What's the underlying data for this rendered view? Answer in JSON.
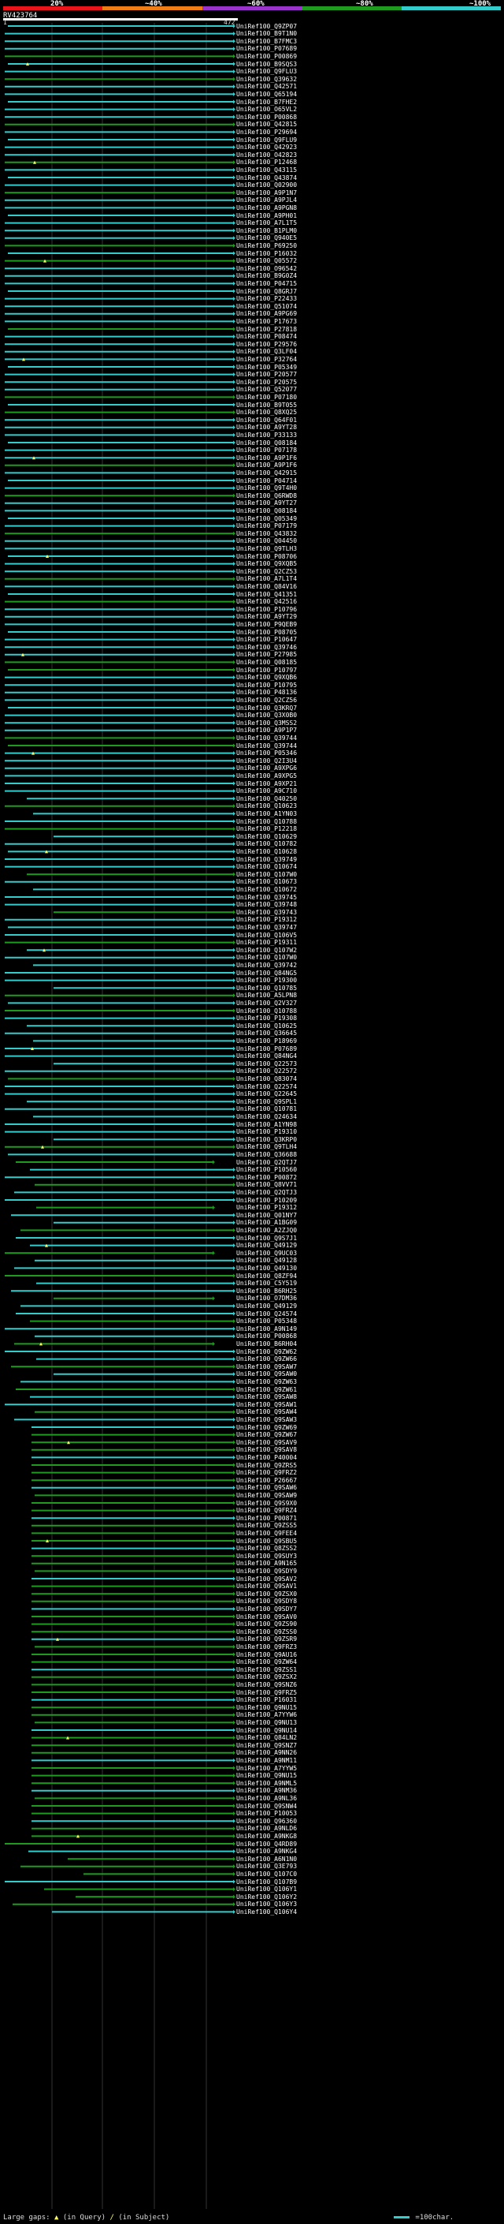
{
  "scale": {
    "labels": [
      "20%",
      "~40%",
      "~60%",
      "~80%",
      "~100%"
    ],
    "colors": [
      "#e8141a",
      "#ee7d16",
      "#9933cc",
      "#1e9a1e",
      "#33cccc"
    ]
  },
  "query": {
    "id": "RV423764",
    "start": "1",
    "end": "472"
  },
  "legend": {
    "gaps_text": "Large gaps:",
    "query_text": "(in Query)",
    "subject_text": "(in Subject)",
    "scale_text": "=100char."
  },
  "hit_ids": [
    "UniRef100_Q9ZP07",
    "UniRef100_B9T1N0",
    "UniRef100_B7FMC3",
    "UniRef100_P07689",
    "UniRef100_P00869",
    "UniRef100_B9SQS3",
    "UniRef100_Q9FLU3",
    "UniRef100_Q39632",
    "UniRef100_Q42571",
    "UniRef100_Q65194",
    "UniRef100_B7FHE2",
    "UniRef100_O65VL2",
    "UniRef100_P00868",
    "UniRef100_Q42815",
    "UniRef100_P29694",
    "UniRef100_Q9FLU9",
    "UniRef100_Q42923",
    "UniRef100_O42823",
    "UniRef100_P12468",
    "UniRef100_Q43115",
    "UniRef100_Q43874",
    "UniRef100_Q02900",
    "UniRef100_A9P1N7",
    "UniRef100_A9PJL4",
    "UniRef100_A9PGN8",
    "UniRef100_A9PH01",
    "UniRef100_A7L1T5",
    "UniRef100_B1PLM0",
    "UniRef100_Q940E5",
    "UniRef100_P69250",
    "UniRef100_P16032",
    "UniRef100_Q05572",
    "UniRef100_O96542",
    "UniRef100_B9G0Z4",
    "UniRef100_P04715",
    "UniRef100_Q8GRJ7",
    "UniRef100_P22433",
    "UniRef100_Q51074",
    "UniRef100_A9PG69",
    "UniRef100_P17673",
    "UniRef100_P27818",
    "UniRef100_P08474",
    "UniRef100_P29576",
    "UniRef100_Q3LF04",
    "UniRef100_P32764",
    "UniRef100_P05349",
    "UniRef100_P20577",
    "UniRef100_P20575",
    "UniRef100_Q52077",
    "UniRef100_P07180",
    "UniRef100_B9T055",
    "UniRef100_Q8XQ25",
    "UniRef100_Q64F01",
    "UniRef100_A9YT28",
    "UniRef100_P33133",
    "UniRef100_Q08184",
    "UniRef100_P07178",
    "UniRef100_A9P1F6",
    "UniRef100_A9P1F6",
    "UniRef100_Q42915",
    "UniRef100_P04714",
    "UniRef100_Q9T4H0",
    "UniRef100_Q6RWD8",
    "UniRef100_A9YT27",
    "UniRef100_Q08184",
    "UniRef100_Q05349",
    "UniRef100_P07179",
    "UniRef100_Q43832",
    "UniRef100_Q04450",
    "UniRef100_Q9TLH3",
    "UniRef100_P08706",
    "UniRef100_Q9XQB5",
    "UniRef100_Q2CZ53",
    "UniRef100_A7L1T4",
    "UniRef100_Q84V16",
    "UniRef100_Q41351",
    "UniRef100_Q42516",
    "UniRef100_P10796",
    "UniRef100_A9YT29",
    "UniRef100_P9QEB9",
    "UniRef100_P08705",
    "UniRef100_P10647",
    "UniRef100_Q39746",
    "UniRef100_P27985",
    "UniRef100_Q08185",
    "UniRef100_P10797",
    "UniRef100_Q9XQB6",
    "UniRef100_P10795",
    "UniRef100_P48136",
    "UniRef100_Q2CZ56",
    "UniRef100_Q3KRQ7",
    "UniRef100_Q3X0B0",
    "UniRef100_Q3MSS2",
    "UniRef100_A9P1P7",
    "UniRef100_Q39744",
    "UniRef100_Q39744",
    "UniRef100_P05346",
    "UniRef100_Q2I3U4",
    "UniRef100_A9XPG6",
    "UniRef100_A9XPG5",
    "UniRef100_A9XP21",
    "UniRef100_A9C710",
    "UniRef100_Q40250",
    "UniRef100_Q10623",
    "UniRef100_A1YN03",
    "UniRef100_Q10788",
    "UniRef100_P12218",
    "UniRef100_Q10629",
    "UniRef100_Q10782",
    "UniRef100_Q10628",
    "UniRef100_Q39749",
    "UniRef100_Q10674",
    "UniRef100_Q107W0",
    "UniRef100_Q10673",
    "UniRef100_Q10672",
    "UniRef100_Q39745",
    "UniRef100_Q39748",
    "UniRef100_Q39743",
    "UniRef100_P19312",
    "UniRef100_Q39747",
    "UniRef100_Q106V5",
    "UniRef100_P19311",
    "UniRef100_Q107W2",
    "UniRef100_Q107W0",
    "UniRef100_Q39742",
    "UniRef100_Q84NG5",
    "UniRef100_P19300",
    "UniRef100_Q10785",
    "UniRef100_A5LPN8",
    "UniRef100_Q2V327",
    "UniRef100_Q10788",
    "UniRef100_P19308",
    "UniRef100_Q10625",
    "UniRef100_Q36645",
    "UniRef100_P18969",
    "UniRef100_P07689",
    "UniRef100_Q84NG4",
    "UniRef100_Q22573",
    "UniRef100_Q22572",
    "UniRef100_Q83074",
    "UniRef100_Q22574",
    "UniRef100_Q22645",
    "UniRef100_Q9SPL1",
    "UniRef100_Q10781",
    "UniRef100_Q24634",
    "UniRef100_A1YN98",
    "UniRef100_P19310",
    "UniRef100_Q3KRP0",
    "UniRef100_Q9TLH4",
    "UniRef100_Q36688",
    "UniRef100_Q2QTJ7",
    "UniRef100_P10560",
    "UniRef100_P00872",
    "UniRef100_Q8VV71",
    "UniRef100_Q2QTJ3",
    "UniRef100_P10209",
    "UniRef100_P19312",
    "UniRef100_Q01NY7",
    "UniRef100_A1BG09",
    "UniRef100_A2ZJQ0",
    "UniRef100_Q9S7J1",
    "UniRef100_Q49129",
    "UniRef100_Q9UC03",
    "UniRef100_Q49128",
    "UniRef100_Q49130",
    "UniRef100_Q8ZF94",
    "UniRef100_C5Y519",
    "UniRef100_B6RH25",
    "UniRef100_O7DM36",
    "UniRef100_Q49129",
    "UniRef100_Q24574",
    "UniRef100_P05348",
    "UniRef100_A9N149",
    "UniRef100_P00868",
    "UniRef100_B6RH04",
    "UniRef100_Q9ZW62",
    "UniRef100_Q9ZW66",
    "UniRef100_Q9SAW7",
    "UniRef100_Q9SAW0",
    "UniRef100_Q9ZW63",
    "UniRef100_Q9ZW61",
    "UniRef100_Q9SAW8",
    "UniRef100_Q9SAW1",
    "UniRef100_Q9SAW4",
    "UniRef100_Q9SAW3",
    "UniRef100_Q9ZW69",
    "UniRef100_Q9ZW67",
    "UniRef100_Q9SAV9",
    "UniRef100_Q9SAV8",
    "UniRef100_P40004",
    "UniRef100_Q9ZRS5",
    "UniRef100_Q9FRZ2",
    "UniRef100_P26667",
    "UniRef100_Q9SAW6",
    "UniRef100_Q9SAW9",
    "UniRef100_Q9S9X0",
    "UniRef100_Q9FRZ4",
    "UniRef100_P00871",
    "UniRef100_Q9ZSS5",
    "UniRef100_Q9FEE4",
    "UniRef100_Q9SBU5",
    "UniRef100_Q8ZSS2",
    "UniRef100_Q9SUY3",
    "UniRef100_A9N165",
    "UniRef100_Q9SDY9",
    "UniRef100_Q9SAV2",
    "UniRef100_Q9SAV1",
    "UniRef100_Q9ZSX0",
    "UniRef100_Q9SDY8",
    "UniRef100_Q9SDY7",
    "UniRef100_Q9SAV0",
    "UniRef100_Q9ZS90",
    "UniRef100_Q9ZSS0",
    "UniRef100_Q9ZSR9",
    "UniRef100_Q9FRZ3",
    "UniRef100_Q9AU16",
    "UniRef100_Q9ZW64",
    "UniRef100_Q9ZSS1",
    "UniRef100_Q9ZSX2",
    "UniRef100_Q9SNZ6",
    "UniRef100_Q9FRZ5",
    "UniRef100_P16031",
    "UniRef100_Q9NU15",
    "UniRef100_A7YYW6",
    "UniRef100_Q9NU13",
    "UniRef100_Q9NU14",
    "UniRef100_Q84LN2",
    "UniRef100_Q9SNZ7",
    "UniRef100_A9NN26",
    "UniRef100_A9NM11",
    "UniRef100_A7YYW5",
    "UniRef100_Q9NU15",
    "UniRef100_A9NML5",
    "UniRef100_A9NM36",
    "UniRef100_A9NL36",
    "UniRef100_Q9SNW4",
    "UniRef100_P10053",
    "UniRef100_Q96360",
    "UniRef100_A9NLD6",
    "UniRef100_A9NKG8",
    "UniRef100_Q4RD89",
    "UniRef100_A9NKG4",
    "UniRef100_A6N1N0",
    "UniRef100_Q3E793",
    "UniRef100_Q107C0",
    "UniRef100_Q107B9",
    "UniRef100_Q106Y1",
    "UniRef100_Q106Y2",
    "UniRef100_Q106Y3",
    "UniRef100_Q106Y4"
  ]
}
